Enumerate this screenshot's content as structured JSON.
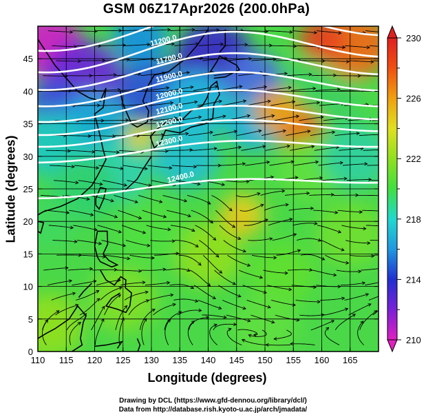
{
  "title": "GSM 06Z17Apr2026 (200.0hPa)",
  "x_axis": {
    "label": "Longitude (degrees)",
    "ticks": [
      110,
      115,
      120,
      125,
      130,
      135,
      140,
      145,
      150,
      155,
      160,
      165
    ],
    "range": [
      110,
      170
    ]
  },
  "y_axis": {
    "label": "Latitude  (degrees)",
    "ticks": [
      0,
      5,
      10,
      15,
      20,
      25,
      30,
      35,
      40,
      45
    ],
    "range": [
      0,
      50
    ]
  },
  "colorbar": {
    "labels": [
      "230",
      "226",
      "222",
      "218",
      "214",
      "210"
    ],
    "min": 210,
    "max": 230,
    "colors": [
      "#e020c0",
      "#7a20d8",
      "#2030d0",
      "#2098e0",
      "#20d8d0",
      "#40e040",
      "#90e020",
      "#e0e020",
      "#f0a010",
      "#f05010",
      "#e02020"
    ]
  },
  "contours": {
    "labels": [
      "11600.0",
      "11200.0",
      "11700.0",
      "11900.0",
      "12000.0",
      "12100.0",
      "12200.0",
      "12300.0",
      "12400.0"
    ],
    "color": "#ffffff"
  },
  "credits": {
    "line1": "Drawing by DCL (https://www.gfd-dennou.org/library/dcl/)",
    "line2": "Data from http://database.rish.kyoto-u.ac.jp/arch/jmadata/"
  }
}
